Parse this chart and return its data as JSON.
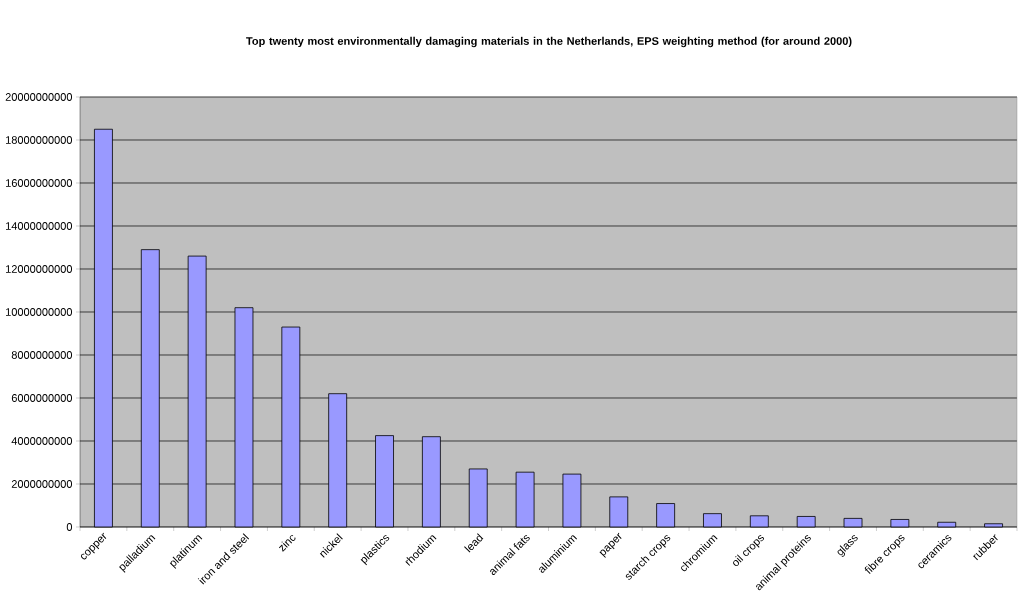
{
  "chart_data": {
    "type": "bar",
    "title": "Top twenty most environmentally damaging materials in the Netherlands, EPS weighting method (for around 2000)",
    "categories": [
      "copper",
      "palladium",
      "platinum",
      "iron and steel",
      "zinc",
      "nickel",
      "plastics",
      "rhodium",
      "lead",
      "animal fats",
      "aluminium",
      "paper",
      "starch crops",
      "chromium",
      "oil crops",
      "animal proteins",
      "glass",
      "fibre crops",
      "ceramics",
      "rubber"
    ],
    "values": [
      18500000000,
      12900000000,
      12600000000,
      10200000000,
      9300000000,
      6200000000,
      4250000000,
      4200000000,
      2700000000,
      2550000000,
      2460000000,
      1400000000,
      1090000000,
      620000000,
      520000000,
      490000000,
      400000000,
      350000000,
      220000000,
      150000000
    ],
    "color": "#9999ff",
    "ylim": [
      0,
      20000000000
    ],
    "yticks": [
      0,
      2000000000,
      4000000000,
      6000000000,
      8000000000,
      10000000000,
      12000000000,
      14000000000,
      16000000000,
      18000000000,
      20000000000
    ],
    "grid": "y"
  }
}
